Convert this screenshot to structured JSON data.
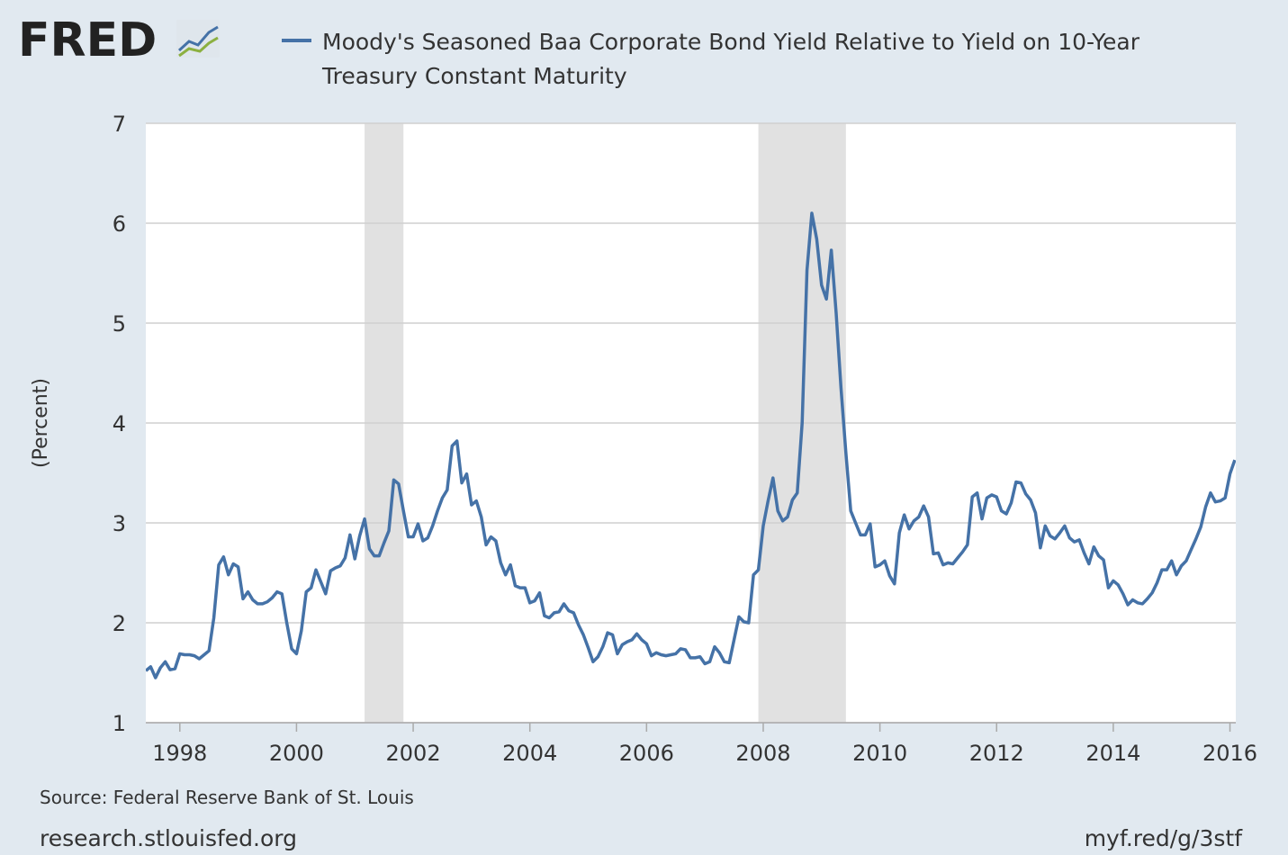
{
  "logo": "FRED",
  "chart_data": {
    "type": "line",
    "series": [
      {
        "name": "Moody's Seasoned Baa Corporate Bond Yield Relative to Yield on 10-Year Treasury Constant Maturity",
        "color": "#4572a7",
        "values": [
          1.52,
          1.56,
          1.45,
          1.55,
          1.61,
          1.53,
          1.54,
          1.69,
          1.68,
          1.68,
          1.67,
          1.64,
          1.68,
          1.72,
          2.05,
          2.58,
          2.66,
          2.48,
          2.59,
          2.56,
          2.24,
          2.31,
          2.23,
          2.19,
          2.19,
          2.21,
          2.25,
          2.31,
          2.29,
          2.0,
          1.74,
          1.69,
          1.92,
          2.31,
          2.35,
          2.53,
          2.41,
          2.29,
          2.52,
          2.55,
          2.57,
          2.65,
          2.88,
          2.64,
          2.87,
          3.04,
          2.74,
          2.67,
          2.67,
          2.8,
          2.92,
          3.43,
          3.39,
          3.12,
          2.86,
          2.86,
          2.99,
          2.82,
          2.85,
          2.97,
          3.12,
          3.25,
          3.33,
          3.77,
          3.82,
          3.4,
          3.49,
          3.18,
          3.22,
          3.06,
          2.78,
          2.86,
          2.82,
          2.6,
          2.48,
          2.58,
          2.37,
          2.35,
          2.35,
          2.2,
          2.22,
          2.3,
          2.07,
          2.05,
          2.1,
          2.11,
          2.19,
          2.12,
          2.1,
          1.98,
          1.88,
          1.75,
          1.61,
          1.66,
          1.76,
          1.9,
          1.88,
          1.69,
          1.78,
          1.81,
          1.83,
          1.89,
          1.83,
          1.79,
          1.67,
          1.7,
          1.68,
          1.67,
          1.68,
          1.69,
          1.74,
          1.73,
          1.65,
          1.65,
          1.66,
          1.59,
          1.61,
          1.76,
          1.7,
          1.61,
          1.6,
          1.83,
          2.06,
          2.01,
          2.0,
          2.48,
          2.53,
          2.97,
          3.22,
          3.45,
          3.12,
          3.02,
          3.06,
          3.23,
          3.3,
          4.0,
          5.53,
          6.1,
          5.84,
          5.38,
          5.24,
          5.73,
          5.1,
          4.35,
          3.7,
          3.12,
          3.0,
          2.88,
          2.88,
          2.99,
          2.56,
          2.58,
          2.62,
          2.47,
          2.39,
          2.9,
          3.08,
          2.94,
          3.02,
          3.06,
          3.17,
          3.06,
          2.69,
          2.7,
          2.58,
          2.6,
          2.59,
          2.65,
          2.71,
          2.78,
          3.26,
          3.3,
          3.04,
          3.25,
          3.28,
          3.26,
          3.12,
          3.09,
          3.2,
          3.41,
          3.4,
          3.29,
          3.23,
          3.1,
          2.75,
          2.97,
          2.87,
          2.84,
          2.9,
          2.97,
          2.85,
          2.81,
          2.83,
          2.7,
          2.59,
          2.76,
          2.67,
          2.63,
          2.35,
          2.42,
          2.38,
          2.29,
          2.18,
          2.23,
          2.2,
          2.19,
          2.24,
          2.3,
          2.4,
          2.53,
          2.53,
          2.62,
          2.48,
          2.57,
          2.62,
          2.73,
          2.84,
          2.96,
          3.16,
          3.3,
          3.21,
          3.22,
          3.25,
          3.49,
          3.63
        ]
      }
    ],
    "x": [
      1997.417,
      1997.5,
      1997.583,
      1997.667,
      1997.75,
      1997.833,
      1997.917,
      1998,
      1998.083,
      1998.167,
      1998.25,
      1998.333,
      1998.417,
      1998.5,
      1998.583,
      1998.667,
      1998.75,
      1998.833,
      1998.917,
      1999,
      1999.083,
      1999.167,
      1999.25,
      1999.333,
      1999.417,
      1999.5,
      1999.583,
      1999.667,
      1999.75,
      1999.833,
      1999.917,
      2000,
      2000.083,
      2000.167,
      2000.25,
      2000.333,
      2000.417,
      2000.5,
      2000.583,
      2000.667,
      2000.75,
      2000.833,
      2000.917,
      2001,
      2001.083,
      2001.167,
      2001.25,
      2001.333,
      2001.417,
      2001.5,
      2001.583,
      2001.667,
      2001.75,
      2001.833,
      2001.917,
      2002,
      2002.083,
      2002.167,
      2002.25,
      2002.333,
      2002.417,
      2002.5,
      2002.583,
      2002.667,
      2002.75,
      2002.833,
      2002.917,
      2003,
      2003.083,
      2003.167,
      2003.25,
      2003.333,
      2003.417,
      2003.5,
      2003.583,
      2003.667,
      2003.75,
      2003.833,
      2003.917,
      2004,
      2004.083,
      2004.167,
      2004.25,
      2004.333,
      2004.417,
      2004.5,
      2004.583,
      2004.667,
      2004.75,
      2004.833,
      2004.917,
      2005,
      2005.083,
      2005.167,
      2005.25,
      2005.333,
      2005.417,
      2005.5,
      2005.583,
      2005.667,
      2005.75,
      2005.833,
      2005.917,
      2006,
      2006.083,
      2006.167,
      2006.25,
      2006.333,
      2006.417,
      2006.5,
      2006.583,
      2006.667,
      2006.75,
      2006.833,
      2006.917,
      2007,
      2007.083,
      2007.167,
      2007.25,
      2007.333,
      2007.417,
      2007.5,
      2007.583,
      2007.667,
      2007.75,
      2007.833,
      2007.917,
      2008,
      2008.083,
      2008.167,
      2008.25,
      2008.333,
      2008.417,
      2008.5,
      2008.583,
      2008.667,
      2008.75,
      2008.833,
      2008.917,
      2009,
      2009.083,
      2009.167,
      2009.25,
      2009.333,
      2009.417,
      2009.5,
      2009.583,
      2009.667,
      2009.75,
      2009.833,
      2009.917,
      2010,
      2010.083,
      2010.167,
      2010.25,
      2010.333,
      2010.417,
      2010.5,
      2010.583,
      2010.667,
      2010.75,
      2010.833,
      2010.917,
      2011,
      2011.083,
      2011.167,
      2011.25,
      2011.333,
      2011.417,
      2011.5,
      2011.583,
      2011.667,
      2011.75,
      2011.833,
      2011.917,
      2012,
      2012.083,
      2012.167,
      2012.25,
      2012.333,
      2012.417,
      2012.5,
      2012.583,
      2012.667,
      2012.75,
      2012.833,
      2012.917,
      2013,
      2013.083,
      2013.167,
      2013.25,
      2013.333,
      2013.417,
      2013.5,
      2013.583,
      2013.667,
      2013.75,
      2013.833,
      2013.917,
      2014,
      2014.083,
      2014.167,
      2014.25,
      2014.333,
      2014.417,
      2014.5,
      2014.583,
      2014.667,
      2014.75,
      2014.833,
      2014.917,
      2015,
      2015.083,
      2015.167,
      2015.25,
      2015.333,
      2015.417,
      2015.5,
      2015.583,
      2015.667,
      2015.75,
      2015.833,
      2015.917,
      2016,
      2016.083
    ],
    "recessions": [
      {
        "start": 2001.167,
        "end": 2001.833
      },
      {
        "start": 2007.917,
        "end": 2009.417
      }
    ],
    "recession_color": "#e1e1e1",
    "xlim": [
      1997.417,
      2016.1
    ],
    "xticks": [
      1998,
      2000,
      2002,
      2004,
      2006,
      2008,
      2010,
      2012,
      2014,
      2016
    ],
    "ylim": [
      1,
      7
    ],
    "yticks": [
      1,
      2,
      3,
      4,
      5,
      6,
      7
    ],
    "ylabel": "(Percent)",
    "grid": true,
    "source": "Source: Federal Reserve Bank of St. Louis",
    "site": "research.stlouisfed.org",
    "short_url": "myf.red/g/3stf"
  }
}
